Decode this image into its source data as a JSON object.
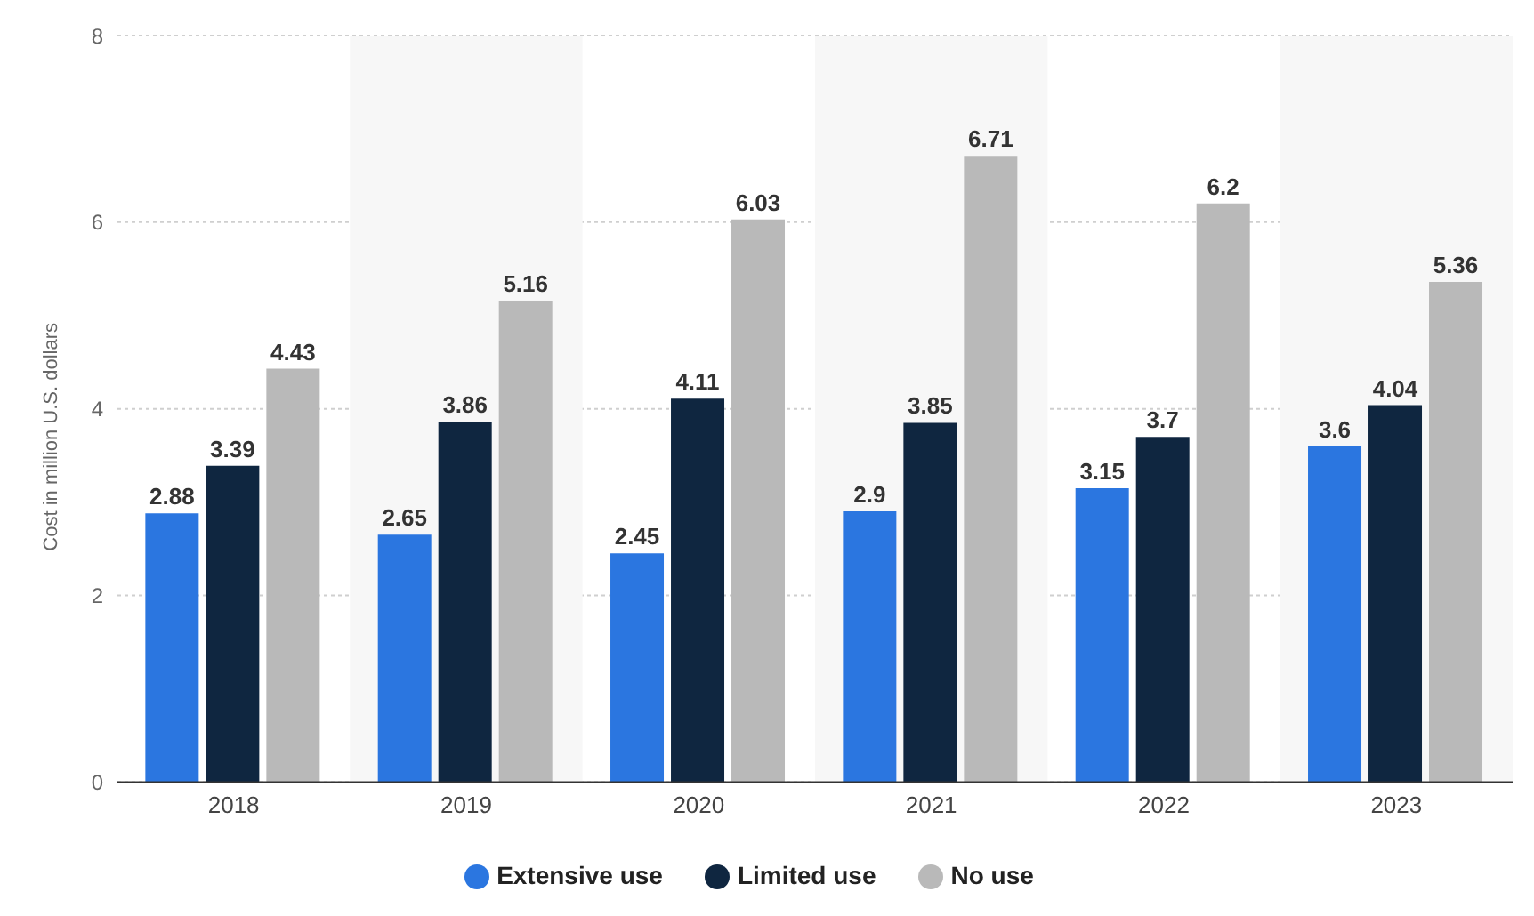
{
  "chart_data": {
    "type": "bar",
    "ylabel": "Cost in million U.S. dollars",
    "categories": [
      "2018",
      "2019",
      "2020",
      "2021",
      "2022",
      "2023"
    ],
    "series": [
      {
        "name": "Extensive use",
        "color": "#2b76e0",
        "values": [
          2.88,
          2.65,
          2.45,
          2.9,
          3.15,
          3.6
        ]
      },
      {
        "name": "Limited use",
        "color": "#0f2640",
        "values": [
          3.39,
          3.86,
          4.11,
          3.85,
          3.7,
          4.04
        ]
      },
      {
        "name": "No use",
        "color": "#b9b9b9",
        "values": [
          4.43,
          5.16,
          6.03,
          6.71,
          6.2,
          5.36
        ]
      }
    ],
    "ylim": [
      0,
      8
    ],
    "yticks": [
      0,
      2,
      4,
      6,
      8
    ],
    "grid": "y",
    "legend": "bottom",
    "data_labels": true,
    "bands": [
      {
        "axis": "x",
        "from": "2019",
        "to": "2019",
        "color": "#f7f7f7"
      },
      {
        "axis": "x",
        "from": "2021",
        "to": "2021",
        "color": "#f7f7f7"
      },
      {
        "axis": "x",
        "from": "2023",
        "to": "2023",
        "color": "#f7f7f7"
      }
    ]
  }
}
